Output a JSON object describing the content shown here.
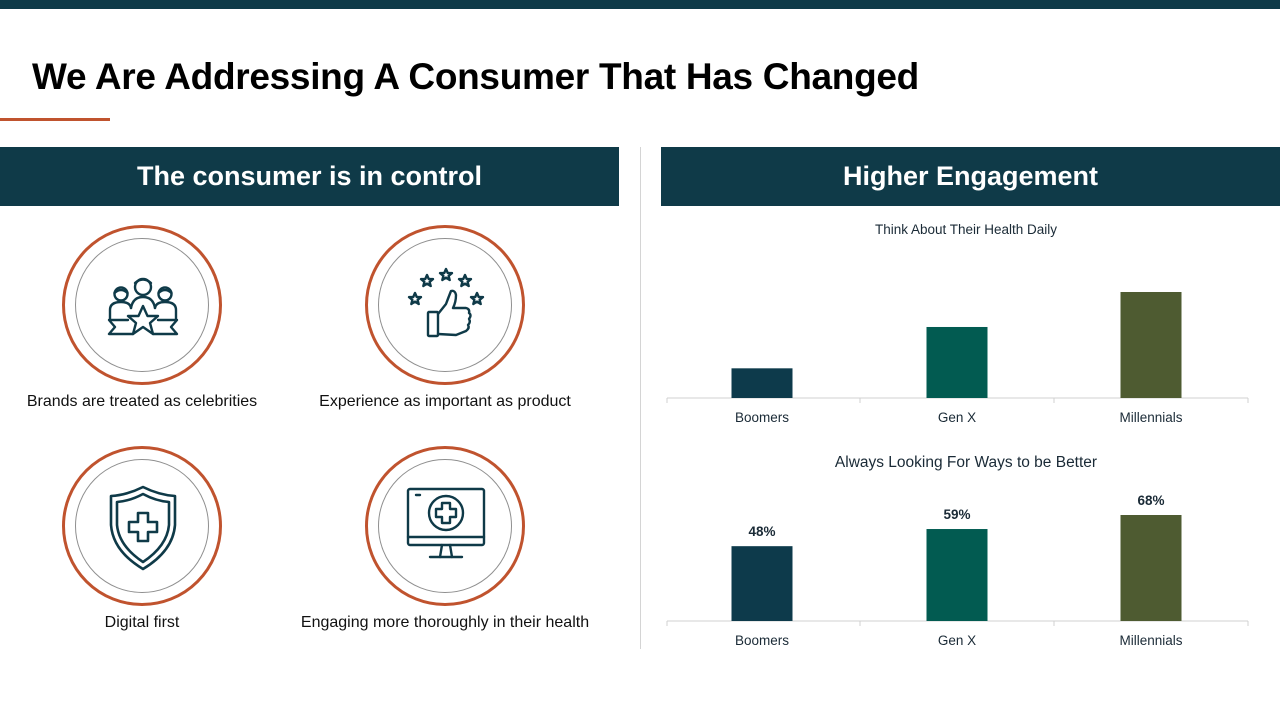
{
  "slide": {
    "title": "We Are Addressing A Consumer That Has Changed",
    "colors": {
      "header_bg": "#0f3a48",
      "accent": "#c0532e",
      "bar_boomers": "#0d3a4b",
      "bar_genx": "#025b51",
      "bar_millennials": "#4e5b31"
    }
  },
  "left_panel": {
    "header": "The consumer is in control",
    "items": [
      {
        "icon": "celebrity-star-group-icon",
        "caption": "Brands are treated  as celebrities"
      },
      {
        "icon": "star-rating-thumbs-up-icon",
        "caption": "Experience as  important as product"
      },
      {
        "icon": "shield-plus-icon",
        "caption": "Digital first"
      },
      {
        "icon": "monitor-medical-cross-icon",
        "caption": "Engaging more thoroughly  in their health"
      }
    ]
  },
  "right_panel": {
    "header": "Higher Engagement"
  },
  "chart_data": [
    {
      "type": "bar",
      "title": "Think About Their Health Daily",
      "categories": [
        "Boomers",
        "Gen X",
        "Millennials"
      ],
      "values": [
        28,
        67,
        100
      ],
      "ylim": [
        0,
        100
      ],
      "data_labels": false,
      "grid": false,
      "colors": [
        "#0d3a4b",
        "#025b51",
        "#4e5b31"
      ]
    },
    {
      "type": "bar",
      "title": "Always Looking For Ways to be Better",
      "categories": [
        "Boomers",
        "Gen X",
        "Millennials"
      ],
      "values": [
        48,
        59,
        68
      ],
      "value_labels": [
        "48%",
        "59%",
        "68%"
      ],
      "ylim": [
        0,
        68
      ],
      "data_labels": true,
      "grid": false,
      "colors": [
        "#0d3a4b",
        "#025b51",
        "#4e5b31"
      ]
    }
  ]
}
